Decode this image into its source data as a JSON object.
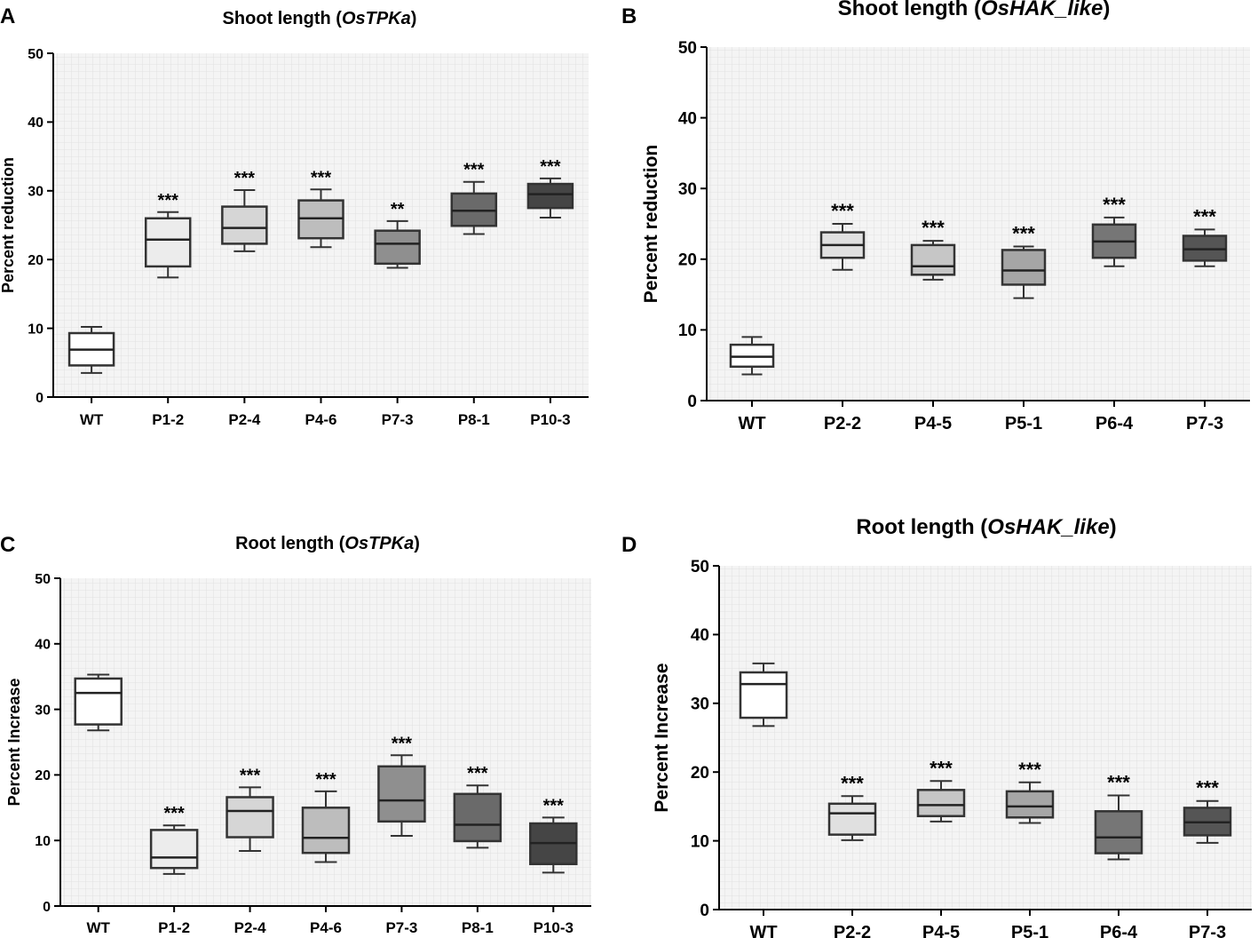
{
  "chart_data": [
    {
      "panel_label": "A",
      "type": "box",
      "title": {
        "pre": "Shoot length (",
        "gene": "OsTPKa",
        "post": ")"
      },
      "xlabel": "",
      "ylabel": "Percent reduction",
      "ylim": [
        0,
        50
      ],
      "yticks": [
        0,
        10,
        20,
        30,
        40,
        50
      ],
      "grid": true,
      "categories": [
        "WT",
        "P1-2",
        "P2-4",
        "P4-6",
        "P7-3",
        "P8-1",
        "P10-3"
      ],
      "fills": [
        "#ffffff",
        "#ececec",
        "#d6d6d6",
        "#bdbdbd",
        "#8f8f8f",
        "#6a6a6a",
        "#454545"
      ],
      "boxes": [
        {
          "min": 3.5,
          "q1": 4.6,
          "median": 6.9,
          "q3": 9.3,
          "max": 10.2,
          "sig": ""
        },
        {
          "min": 17.4,
          "q1": 19.0,
          "median": 22.9,
          "q3": 26.0,
          "max": 26.9,
          "sig": "***"
        },
        {
          "min": 21.2,
          "q1": 22.3,
          "median": 24.6,
          "q3": 27.7,
          "max": 30.1,
          "sig": "***"
        },
        {
          "min": 21.8,
          "q1": 23.1,
          "median": 26.0,
          "q3": 28.6,
          "max": 30.2,
          "sig": "***"
        },
        {
          "min": 18.8,
          "q1": 19.4,
          "median": 22.3,
          "q3": 24.2,
          "max": 25.6,
          "sig": "**"
        },
        {
          "min": 23.7,
          "q1": 24.9,
          "median": 27.1,
          "q3": 29.6,
          "max": 31.3,
          "sig": "***"
        },
        {
          "min": 26.1,
          "q1": 27.5,
          "median": 29.5,
          "q3": 31.0,
          "max": 31.8,
          "sig": "***"
        }
      ]
    },
    {
      "panel_label": "B",
      "type": "box",
      "title": {
        "pre": "Shoot length (",
        "gene": "OsHAK_like",
        "post": ")"
      },
      "xlabel": "",
      "ylabel": "Percent reduction",
      "ylim": [
        0,
        50
      ],
      "yticks": [
        0,
        10,
        20,
        30,
        40,
        50
      ],
      "grid": true,
      "categories": [
        "WT",
        "P2-2",
        "P4-5",
        "P5-1",
        "P6-4",
        "P7-3"
      ],
      "fills": [
        "#ffffff",
        "#e0e0e0",
        "#c6c6c6",
        "#a6a6a6",
        "#767676",
        "#555555"
      ],
      "boxes": [
        {
          "min": 3.7,
          "q1": 4.8,
          "median": 6.2,
          "q3": 7.9,
          "max": 9.0,
          "sig": ""
        },
        {
          "min": 18.5,
          "q1": 20.2,
          "median": 22.0,
          "q3": 23.8,
          "max": 25.0,
          "sig": "***"
        },
        {
          "min": 17.1,
          "q1": 17.8,
          "median": 19.0,
          "q3": 22.0,
          "max": 22.6,
          "sig": "***"
        },
        {
          "min": 14.5,
          "q1": 16.4,
          "median": 18.4,
          "q3": 21.3,
          "max": 21.8,
          "sig": "***"
        },
        {
          "min": 19.0,
          "q1": 20.2,
          "median": 22.5,
          "q3": 24.9,
          "max": 25.9,
          "sig": "***"
        },
        {
          "min": 19.0,
          "q1": 19.8,
          "median": 21.4,
          "q3": 23.3,
          "max": 24.2,
          "sig": "***"
        }
      ]
    },
    {
      "panel_label": "C",
      "type": "box",
      "title": {
        "pre": "Root length (",
        "gene": "OsTPKa",
        "post": ")"
      },
      "xlabel": "",
      "ylabel": "Percent Increase",
      "ylim": [
        0,
        50
      ],
      "yticks": [
        0,
        10,
        20,
        30,
        40,
        50
      ],
      "grid": true,
      "categories": [
        "WT",
        "P1-2",
        "P2-4",
        "P4-6",
        "P7-3",
        "P8-1",
        "P10-3"
      ],
      "fills": [
        "#ffffff",
        "#ececec",
        "#d6d6d6",
        "#bdbdbd",
        "#8f8f8f",
        "#6a6a6a",
        "#454545"
      ],
      "boxes": [
        {
          "min": 26.8,
          "q1": 27.7,
          "median": 32.5,
          "q3": 34.7,
          "max": 35.3,
          "sig": ""
        },
        {
          "min": 4.9,
          "q1": 5.8,
          "median": 7.4,
          "q3": 11.6,
          "max": 12.3,
          "sig": "***"
        },
        {
          "min": 8.4,
          "q1": 10.5,
          "median": 14.5,
          "q3": 16.6,
          "max": 18.1,
          "sig": "***"
        },
        {
          "min": 6.7,
          "q1": 8.1,
          "median": 10.4,
          "q3": 15.0,
          "max": 17.5,
          "sig": "***"
        },
        {
          "min": 10.7,
          "q1": 12.9,
          "median": 16.1,
          "q3": 21.3,
          "max": 23.0,
          "sig": "***"
        },
        {
          "min": 8.9,
          "q1": 9.9,
          "median": 12.4,
          "q3": 17.1,
          "max": 18.4,
          "sig": "***"
        },
        {
          "min": 5.1,
          "q1": 6.4,
          "median": 9.6,
          "q3": 12.6,
          "max": 13.5,
          "sig": "***"
        }
      ]
    },
    {
      "panel_label": "D",
      "type": "box",
      "title": {
        "pre": "Root length (",
        "gene": "OsHAK_like",
        "post": ")"
      },
      "xlabel": "",
      "ylabel": "Percent Increase",
      "ylim": [
        0,
        50
      ],
      "yticks": [
        0,
        10,
        20,
        30,
        40,
        50
      ],
      "grid": true,
      "categories": [
        "WT",
        "P2-2",
        "P4-5",
        "P5-1",
        "P6-4",
        "P7-3"
      ],
      "fills": [
        "#ffffff",
        "#e0e0e0",
        "#c6c6c6",
        "#a6a6a6",
        "#767676",
        "#555555"
      ],
      "boxes": [
        {
          "min": 26.7,
          "q1": 27.9,
          "median": 32.8,
          "q3": 34.5,
          "max": 35.8,
          "sig": ""
        },
        {
          "min": 10.1,
          "q1": 10.9,
          "median": 14.0,
          "q3": 15.4,
          "max": 16.5,
          "sig": "***"
        },
        {
          "min": 12.8,
          "q1": 13.6,
          "median": 15.2,
          "q3": 17.4,
          "max": 18.7,
          "sig": "***"
        },
        {
          "min": 12.6,
          "q1": 13.4,
          "median": 15.0,
          "q3": 17.2,
          "max": 18.5,
          "sig": "***"
        },
        {
          "min": 7.3,
          "q1": 8.2,
          "median": 10.5,
          "q3": 14.3,
          "max": 16.6,
          "sig": "***"
        },
        {
          "min": 9.7,
          "q1": 10.8,
          "median": 12.7,
          "q3": 14.8,
          "max": 15.8,
          "sig": "***"
        }
      ]
    }
  ]
}
